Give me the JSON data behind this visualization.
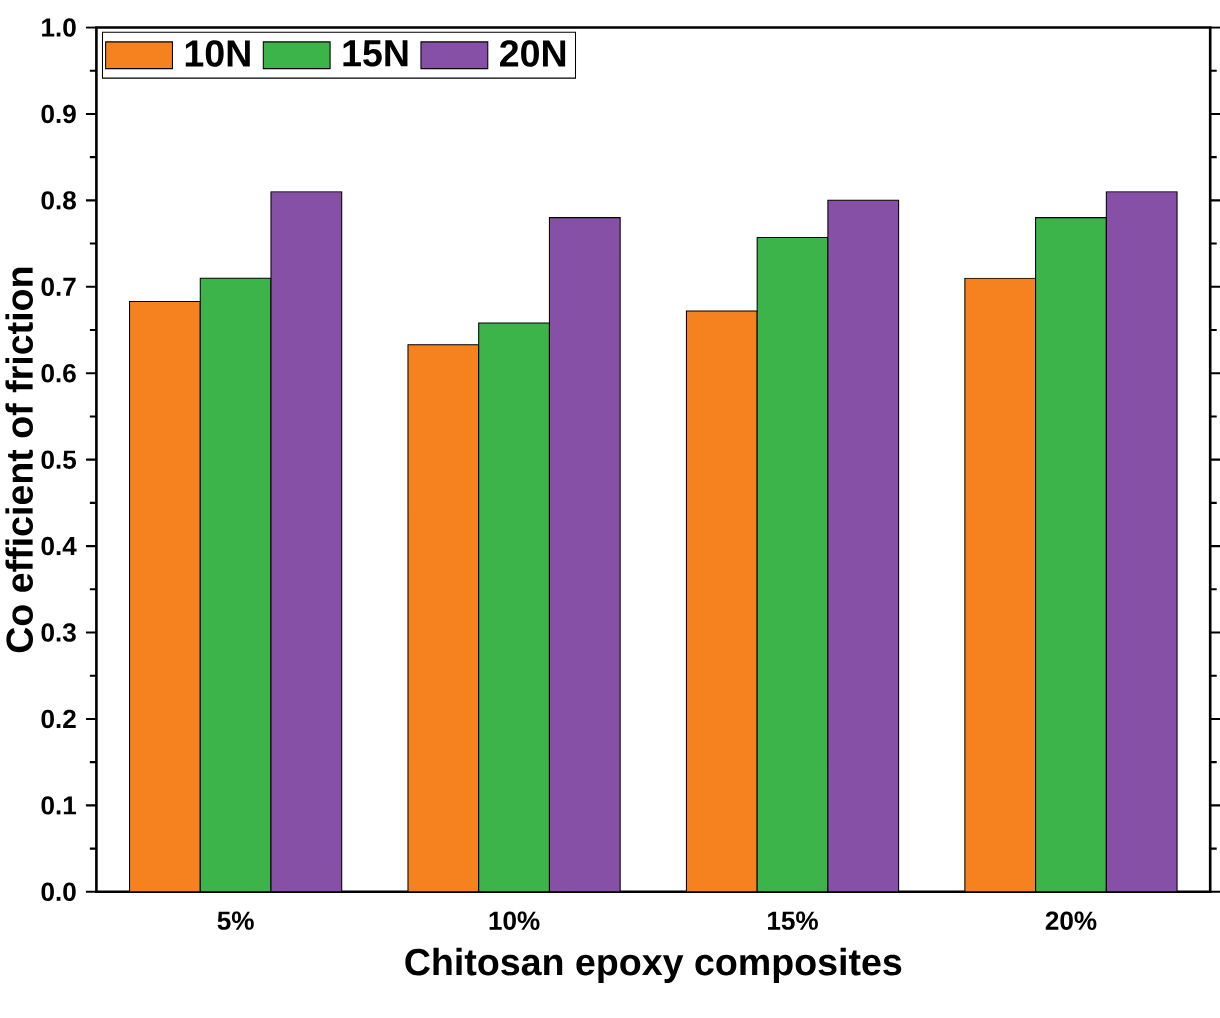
{
  "chart_data": {
    "type": "bar",
    "xlabel": "Chitosan epoxy composites",
    "ylabel": "Co efficient of friction",
    "categories": [
      "5%",
      "10%",
      "15%",
      "20%"
    ],
    "series": [
      {
        "name": "10N",
        "color": "#f5821f",
        "values": [
          0.683,
          0.633,
          0.672,
          0.71
        ]
      },
      {
        "name": "15N",
        "color": "#3cb44a",
        "values": [
          0.71,
          0.658,
          0.757,
          0.78
        ]
      },
      {
        "name": "20N",
        "color": "#8650a6",
        "values": [
          0.81,
          0.78,
          0.8,
          0.81
        ]
      }
    ],
    "ylim": [
      0,
      1
    ],
    "yticks": [
      {
        "value": 0,
        "label": "0.0"
      },
      0.1,
      0.2,
      0.3,
      0.4,
      0.5,
      0.6,
      0.7,
      0.8,
      0.9,
      {
        "value": 1,
        "label": "1.0"
      }
    ],
    "legend": "top left",
    "grid": false
  }
}
